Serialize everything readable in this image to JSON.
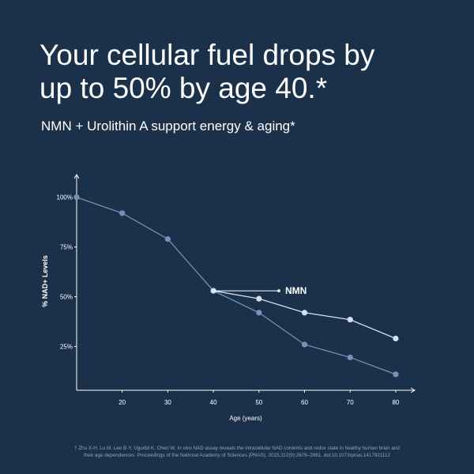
{
  "chart_data": {
    "type": "line",
    "title_lines": [
      "Your cellular fuel drops by",
      "up to 50% by age 40.*"
    ],
    "subtitle": "NMN + Urolithin A support energy & aging*",
    "x_label": "Age (years)",
    "y_label": "% NAD+ Levels",
    "xlim": [
      10,
      84
    ],
    "ylim": [
      3,
      111
    ],
    "xticks": [
      20,
      30,
      40,
      50,
      60,
      70,
      80
    ],
    "yticks": [
      {
        "value": 25,
        "label": "25%"
      },
      {
        "value": 50,
        "label": "50%"
      },
      {
        "value": 75,
        "label": "75%"
      },
      {
        "value": 100,
        "label": "100%"
      }
    ],
    "series": [
      {
        "color": "#7592bb",
        "x": [
          10,
          20,
          30,
          40,
          50,
          60,
          70,
          80
        ],
        "values": [
          100,
          92,
          79,
          53,
          42,
          26,
          19.5,
          11
        ]
      },
      {
        "name": "NMN",
        "color": "#d3deee",
        "x": [
          40,
          50,
          60,
          70,
          80
        ],
        "values": [
          53,
          49,
          42,
          38.5,
          29
        ]
      }
    ],
    "footnote": [
      "† Zhu X-H, Lu M, Lee B-Y, Ugurbil K, Chen W. In vivo NAD assay reveals the intracellular NAD contents and redox state in healthy human brain and",
      "their age dependences. Proceedings of the National Academy of Sciences (PNAS). 2015;112(9):2876–2881. doi:10.1073/pnas.1417921112"
    ]
  }
}
